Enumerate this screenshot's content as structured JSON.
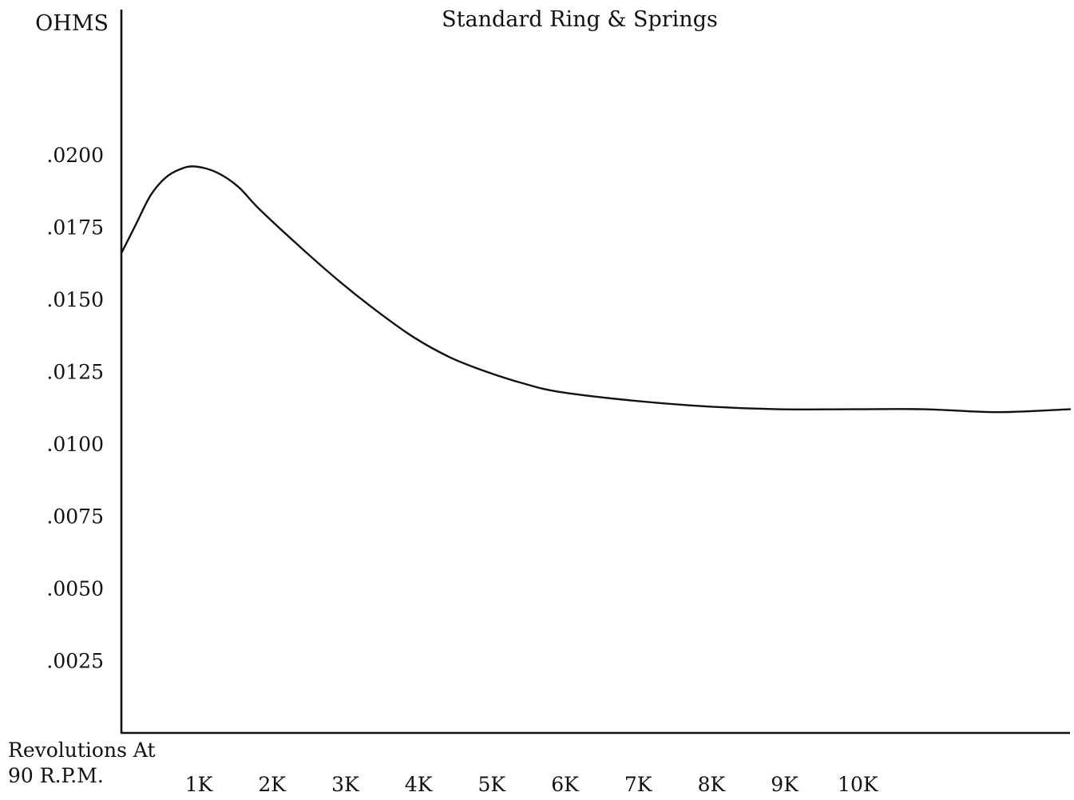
{
  "chart_data": {
    "type": "line",
    "title": "Standard Ring & Springs",
    "ylabel": "OHMS",
    "xlabel_lines": [
      "Revolutions At",
      "90 R.P.M."
    ],
    "xlabel": "Revolutions At 90 R.P.M.",
    "x_unit": "revolutions",
    "xlim": [
      0,
      13000
    ],
    "ylim": [
      0,
      0.025
    ],
    "x_ticks": [
      {
        "value": 1000,
        "label": "1K"
      },
      {
        "value": 2000,
        "label": "2K"
      },
      {
        "value": 3000,
        "label": "3K"
      },
      {
        "value": 4000,
        "label": "4K"
      },
      {
        "value": 5000,
        "label": "5K"
      },
      {
        "value": 6000,
        "label": "6K"
      },
      {
        "value": 7000,
        "label": "7K"
      },
      {
        "value": 8000,
        "label": "8K"
      },
      {
        "value": 9000,
        "label": "9K"
      },
      {
        "value": 10000,
        "label": "10K"
      }
    ],
    "y_ticks": [
      {
        "value": 0.0025,
        "label": ".0025"
      },
      {
        "value": 0.005,
        "label": ".0050"
      },
      {
        "value": 0.0075,
        "label": ".0075"
      },
      {
        "value": 0.01,
        "label": ".0100"
      },
      {
        "value": 0.0125,
        "label": ".0125"
      },
      {
        "value": 0.015,
        "label": ".0150"
      },
      {
        "value": 0.0175,
        "label": ".0175"
      },
      {
        "value": 0.02,
        "label": ".0200"
      }
    ],
    "grid": false,
    "legend": "none",
    "series": [
      {
        "color": "#111111",
        "x": [
          0,
          200,
          400,
          600,
          800,
          1000,
          1300,
          1600,
          1900,
          2500,
          3000,
          3500,
          4000,
          4500,
          5000,
          5500,
          6000,
          7000,
          8000,
          9000,
          10000,
          11000,
          12000,
          13000
        ],
        "y": [
          0.0166,
          0.0176,
          0.0186,
          0.0192,
          0.0195,
          0.0196,
          0.0194,
          0.0189,
          0.0181,
          0.0167,
          0.0156,
          0.0146,
          0.0137,
          0.013,
          0.0125,
          0.0121,
          0.0118,
          0.0115,
          0.0113,
          0.0112,
          0.0112,
          0.0112,
          0.0111,
          0.0112
        ]
      }
    ]
  }
}
